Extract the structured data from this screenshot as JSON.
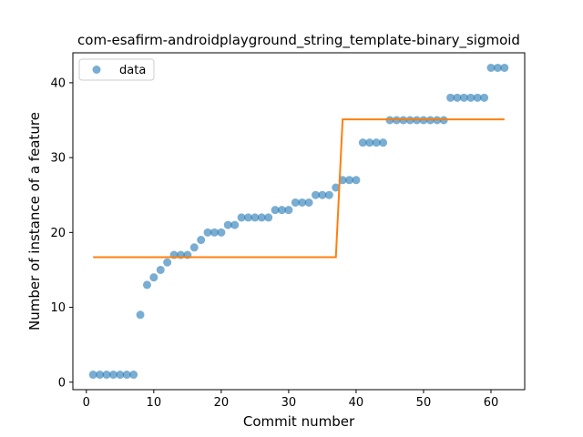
{
  "chart_data": {
    "type": "scatter",
    "title": "com-esafirm-androidplayground_string_template-binary_sigmoid",
    "xlabel": "Commit number",
    "ylabel": "Number of instance of a feature",
    "xlim": [
      -2,
      65
    ],
    "ylim": [
      -1,
      44
    ],
    "xticks": [
      0,
      10,
      20,
      30,
      40,
      50,
      60
    ],
    "yticks": [
      0,
      10,
      20,
      30,
      40
    ],
    "grid": false,
    "legend_position": "top-left",
    "series": [
      {
        "name": "data",
        "kind": "scatter",
        "color": "#1f77b4",
        "x": [
          1,
          2,
          3,
          4,
          5,
          6,
          7,
          8,
          9,
          10,
          11,
          12,
          13,
          14,
          15,
          16,
          17,
          18,
          19,
          20,
          21,
          22,
          23,
          24,
          25,
          26,
          27,
          28,
          29,
          30,
          31,
          32,
          33,
          34,
          35,
          36,
          37,
          38,
          39,
          40,
          41,
          42,
          43,
          44,
          45,
          46,
          47,
          48,
          49,
          50,
          51,
          52,
          53,
          54,
          55,
          56,
          57,
          58,
          59,
          60,
          61,
          62
        ],
        "y": [
          1,
          1,
          1,
          1,
          1,
          1,
          1,
          9,
          13,
          14,
          15,
          16,
          17,
          17,
          17,
          18,
          19,
          20,
          20,
          20,
          21,
          21,
          22,
          22,
          22,
          22,
          22,
          23,
          23,
          23,
          24,
          24,
          24,
          25,
          25,
          25,
          26,
          27,
          27,
          27,
          32,
          32,
          32,
          32,
          35,
          35,
          35,
          35,
          35,
          35,
          35,
          35,
          35,
          38,
          38,
          38,
          38,
          38,
          38,
          42,
          42,
          42
        ]
      },
      {
        "kind": "line",
        "color": "#ff7f0e",
        "x": [
          1,
          37,
          38,
          62
        ],
        "y": [
          16.7,
          16.7,
          35.1,
          35.1
        ]
      }
    ]
  }
}
